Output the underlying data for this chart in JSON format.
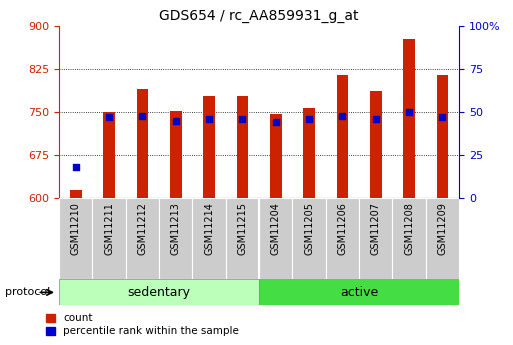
{
  "title": "GDS654 / rc_AA859931_g_at",
  "samples": [
    "GSM11210",
    "GSM11211",
    "GSM11212",
    "GSM11213",
    "GSM11214",
    "GSM11215",
    "GSM11204",
    "GSM11205",
    "GSM11206",
    "GSM11207",
    "GSM11208",
    "GSM11209"
  ],
  "count_values": [
    615,
    750,
    790,
    752,
    778,
    778,
    747,
    757,
    815,
    787,
    878,
    815
  ],
  "percentile_values": [
    18,
    47,
    48,
    45,
    46,
    46,
    44,
    46,
    48,
    46,
    50,
    47
  ],
  "sedentary_count": 6,
  "active_count": 6,
  "ylim_left": [
    600,
    900
  ],
  "ylim_right": [
    0,
    100
  ],
  "yticks_left": [
    600,
    675,
    750,
    825,
    900
  ],
  "yticks_right": [
    0,
    25,
    50,
    75,
    100
  ],
  "bar_color": "#cc2200",
  "dot_color": "#0000cc",
  "bg_color": "#ffffff",
  "plot_bg": "#ffffff",
  "label_bg": "#cccccc",
  "group_colors": {
    "sedentary": "#bbffbb",
    "active": "#44dd44"
  },
  "left_axis_color": "#cc2200",
  "right_axis_color": "#0000cc",
  "bar_width": 0.35,
  "dot_size": 18,
  "title_fontsize": 10,
  "tick_fontsize": 8,
  "sample_fontsize": 7,
  "group_fontsize": 9,
  "legend_fontsize": 7.5
}
